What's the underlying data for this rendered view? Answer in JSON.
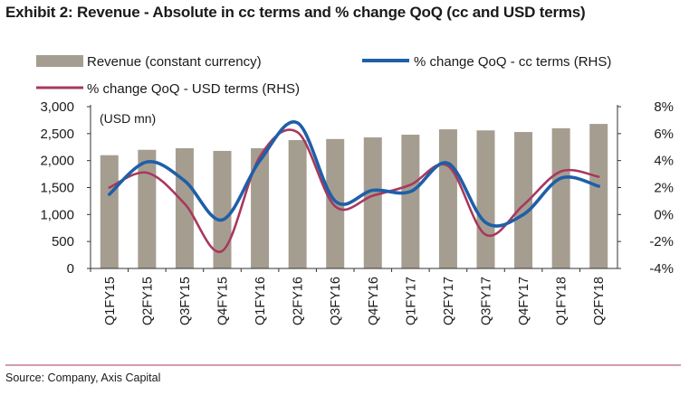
{
  "chart_data": {
    "type": "bar",
    "title": "Exhibit 2: Revenue - Absolute in cc terms and % change QoQ (cc and USD terms)",
    "unit_note": "(USD mn)",
    "categories": [
      "Q1FY15",
      "Q2FY15",
      "Q3FY15",
      "Q4FY15",
      "Q1FY16",
      "Q2FY16",
      "Q3FY16",
      "Q4FY16",
      "Q1FY17",
      "Q2FY17",
      "Q3FY17",
      "Q4FY17",
      "Q1FY18",
      "Q2FY18"
    ],
    "left_axis": {
      "min": 0,
      "max": 3000,
      "ticks": [
        "0",
        "500",
        "1,000",
        "1,500",
        "2,000",
        "2,500",
        "3,000"
      ],
      "tick_values": [
        0,
        500,
        1000,
        1500,
        2000,
        2500,
        3000
      ]
    },
    "right_axis": {
      "min": -4,
      "max": 8,
      "ticks": [
        "-4%",
        "-2%",
        "0%",
        "2%",
        "4%",
        "6%",
        "8%"
      ],
      "tick_values": [
        -4,
        -2,
        0,
        2,
        4,
        6,
        8
      ]
    },
    "series": [
      {
        "name": "Revenue (constant currency)",
        "kind": "bar",
        "axis": "left",
        "color": "#a59e90",
        "values": [
          2100,
          2200,
          2230,
          2180,
          2230,
          2380,
          2400,
          2430,
          2480,
          2580,
          2560,
          2530,
          2600,
          2680
        ]
      },
      {
        "name": "% change QoQ - cc terms (RHS)",
        "kind": "line",
        "axis": "right",
        "color": "#1f5fa8",
        "values": [
          1.5,
          3.9,
          2.5,
          -0.4,
          4.0,
          6.8,
          1.0,
          1.8,
          1.7,
          3.8,
          -0.6,
          0.0,
          2.7,
          2.1
        ]
      },
      {
        "name": "% change QoQ - USD terms (RHS)",
        "kind": "line",
        "axis": "right",
        "color": "#a8385e",
        "values": [
          2.0,
          3.1,
          0.8,
          -2.7,
          4.3,
          6.1,
          0.6,
          1.4,
          2.2,
          3.6,
          -1.5,
          0.7,
          3.2,
          2.8
        ]
      }
    ],
    "legend_position": "top",
    "grid": false
  },
  "source": "Source: Company, Axis Capital",
  "colors": {
    "rule": "#a8385e",
    "axis": "#333333"
  }
}
